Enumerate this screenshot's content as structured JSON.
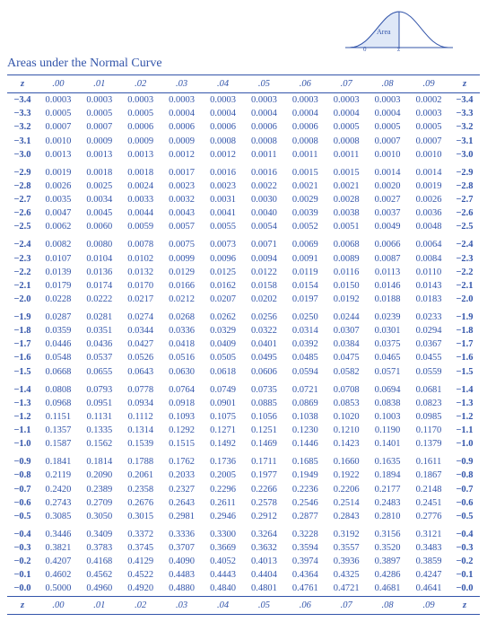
{
  "title": "Areas under the Normal Curve",
  "curve_label": "Area",
  "columns": [
    "z",
    ".00",
    ".01",
    ".02",
    ".03",
    ".04",
    ".05",
    ".06",
    ".07",
    ".08",
    ".09",
    "z"
  ],
  "footer": [
    "z",
    ".00",
    ".01",
    ".02",
    ".03",
    ".04",
    ".05",
    ".06",
    ".07",
    ".08",
    ".09",
    "z"
  ],
  "groups": [
    [
      [
        "−3.4",
        "0.0003",
        "0.0003",
        "0.0003",
        "0.0003",
        "0.0003",
        "0.0003",
        "0.0003",
        "0.0003",
        "0.0003",
        "0.0002",
        "−3.4"
      ],
      [
        "−3.3",
        "0.0005",
        "0.0005",
        "0.0005",
        "0.0004",
        "0.0004",
        "0.0004",
        "0.0004",
        "0.0004",
        "0.0004",
        "0.0003",
        "−3.3"
      ],
      [
        "−3.2",
        "0.0007",
        "0.0007",
        "0.0006",
        "0.0006",
        "0.0006",
        "0.0006",
        "0.0006",
        "0.0005",
        "0.0005",
        "0.0005",
        "−3.2"
      ],
      [
        "−3.1",
        "0.0010",
        "0.0009",
        "0.0009",
        "0.0009",
        "0.0008",
        "0.0008",
        "0.0008",
        "0.0008",
        "0.0007",
        "0.0007",
        "−3.1"
      ],
      [
        "−3.0",
        "0.0013",
        "0.0013",
        "0.0013",
        "0.0012",
        "0.0012",
        "0.0011",
        "0.0011",
        "0.0011",
        "0.0010",
        "0.0010",
        "−3.0"
      ]
    ],
    [
      [
        "−2.9",
        "0.0019",
        "0.0018",
        "0.0018",
        "0.0017",
        "0.0016",
        "0.0016",
        "0.0015",
        "0.0015",
        "0.0014",
        "0.0014",
        "−2.9"
      ],
      [
        "−2.8",
        "0.0026",
        "0.0025",
        "0.0024",
        "0.0023",
        "0.0023",
        "0.0022",
        "0.0021",
        "0.0021",
        "0.0020",
        "0.0019",
        "−2.8"
      ],
      [
        "−2.7",
        "0.0035",
        "0.0034",
        "0.0033",
        "0.0032",
        "0.0031",
        "0.0030",
        "0.0029",
        "0.0028",
        "0.0027",
        "0.0026",
        "−2.7"
      ],
      [
        "−2.6",
        "0.0047",
        "0.0045",
        "0.0044",
        "0.0043",
        "0.0041",
        "0.0040",
        "0.0039",
        "0.0038",
        "0.0037",
        "0.0036",
        "−2.6"
      ],
      [
        "−2.5",
        "0.0062",
        "0.0060",
        "0.0059",
        "0.0057",
        "0.0055",
        "0.0054",
        "0.0052",
        "0.0051",
        "0.0049",
        "0.0048",
        "−2.5"
      ]
    ],
    [
      [
        "−2.4",
        "0.0082",
        "0.0080",
        "0.0078",
        "0.0075",
        "0.0073",
        "0.0071",
        "0.0069",
        "0.0068",
        "0.0066",
        "0.0064",
        "−2.4"
      ],
      [
        "−2.3",
        "0.0107",
        "0.0104",
        "0.0102",
        "0.0099",
        "0.0096",
        "0.0094",
        "0.0091",
        "0.0089",
        "0.0087",
        "0.0084",
        "−2.3"
      ],
      [
        "−2.2",
        "0.0139",
        "0.0136",
        "0.0132",
        "0.0129",
        "0.0125",
        "0.0122",
        "0.0119",
        "0.0116",
        "0.0113",
        "0.0110",
        "−2.2"
      ],
      [
        "−2.1",
        "0.0179",
        "0.0174",
        "0.0170",
        "0.0166",
        "0.0162",
        "0.0158",
        "0.0154",
        "0.0150",
        "0.0146",
        "0.0143",
        "−2.1"
      ],
      [
        "−2.0",
        "0.0228",
        "0.0222",
        "0.0217",
        "0.0212",
        "0.0207",
        "0.0202",
        "0.0197",
        "0.0192",
        "0.0188",
        "0.0183",
        "−2.0"
      ]
    ],
    [
      [
        "−1.9",
        "0.0287",
        "0.0281",
        "0.0274",
        "0.0268",
        "0.0262",
        "0.0256",
        "0.0250",
        "0.0244",
        "0.0239",
        "0.0233",
        "−1.9"
      ],
      [
        "−1.8",
        "0.0359",
        "0.0351",
        "0.0344",
        "0.0336",
        "0.0329",
        "0.0322",
        "0.0314",
        "0.0307",
        "0.0301",
        "0.0294",
        "−1.8"
      ],
      [
        "−1.7",
        "0.0446",
        "0.0436",
        "0.0427",
        "0.0418",
        "0.0409",
        "0.0401",
        "0.0392",
        "0.0384",
        "0.0375",
        "0.0367",
        "−1.7"
      ],
      [
        "−1.6",
        "0.0548",
        "0.0537",
        "0.0526",
        "0.0516",
        "0.0505",
        "0.0495",
        "0.0485",
        "0.0475",
        "0.0465",
        "0.0455",
        "−1.6"
      ],
      [
        "−1.5",
        "0.0668",
        "0.0655",
        "0.0643",
        "0.0630",
        "0.0618",
        "0.0606",
        "0.0594",
        "0.0582",
        "0.0571",
        "0.0559",
        "−1.5"
      ]
    ],
    [
      [
        "−1.4",
        "0.0808",
        "0.0793",
        "0.0778",
        "0.0764",
        "0.0749",
        "0.0735",
        "0.0721",
        "0.0708",
        "0.0694",
        "0.0681",
        "−1.4"
      ],
      [
        "−1.3",
        "0.0968",
        "0.0951",
        "0.0934",
        "0.0918",
        "0.0901",
        "0.0885",
        "0.0869",
        "0.0853",
        "0.0838",
        "0.0823",
        "−1.3"
      ],
      [
        "−1.2",
        "0.1151",
        "0.1131",
        "0.1112",
        "0.1093",
        "0.1075",
        "0.1056",
        "0.1038",
        "0.1020",
        "0.1003",
        "0.0985",
        "−1.2"
      ],
      [
        "−1.1",
        "0.1357",
        "0.1335",
        "0.1314",
        "0.1292",
        "0.1271",
        "0.1251",
        "0.1230",
        "0.1210",
        "0.1190",
        "0.1170",
        "−1.1"
      ],
      [
        "−1.0",
        "0.1587",
        "0.1562",
        "0.1539",
        "0.1515",
        "0.1492",
        "0.1469",
        "0.1446",
        "0.1423",
        "0.1401",
        "0.1379",
        "−1.0"
      ]
    ],
    [
      [
        "−0.9",
        "0.1841",
        "0.1814",
        "0.1788",
        "0.1762",
        "0.1736",
        "0.1711",
        "0.1685",
        "0.1660",
        "0.1635",
        "0.1611",
        "−0.9"
      ],
      [
        "−0.8",
        "0.2119",
        "0.2090",
        "0.2061",
        "0.2033",
        "0.2005",
        "0.1977",
        "0.1949",
        "0.1922",
        "0.1894",
        "0.1867",
        "−0.8"
      ],
      [
        "−0.7",
        "0.2420",
        "0.2389",
        "0.2358",
        "0.2327",
        "0.2296",
        "0.2266",
        "0.2236",
        "0.2206",
        "0.2177",
        "0.2148",
        "−0.7"
      ],
      [
        "−0.6",
        "0.2743",
        "0.2709",
        "0.2676",
        "0.2643",
        "0.2611",
        "0.2578",
        "0.2546",
        "0.2514",
        "0.2483",
        "0.2451",
        "−0.6"
      ],
      [
        "−0.5",
        "0.3085",
        "0.3050",
        "0.3015",
        "0.2981",
        "0.2946",
        "0.2912",
        "0.2877",
        "0.2843",
        "0.2810",
        "0.2776",
        "−0.5"
      ]
    ],
    [
      [
        "−0.4",
        "0.3446",
        "0.3409",
        "0.3372",
        "0.3336",
        "0.3300",
        "0.3264",
        "0.3228",
        "0.3192",
        "0.3156",
        "0.3121",
        "−0.4"
      ],
      [
        "−0.3",
        "0.3821",
        "0.3783",
        "0.3745",
        "0.3707",
        "0.3669",
        "0.3632",
        "0.3594",
        "0.3557",
        "0.3520",
        "0.3483",
        "−0.3"
      ],
      [
        "−0.2",
        "0.4207",
        "0.4168",
        "0.4129",
        "0.4090",
        "0.4052",
        "0.4013",
        "0.3974",
        "0.3936",
        "0.3897",
        "0.3859",
        "−0.2"
      ],
      [
        "−0.1",
        "0.4602",
        "0.4562",
        "0.4522",
        "0.4483",
        "0.4443",
        "0.4404",
        "0.4364",
        "0.4325",
        "0.4286",
        "0.4247",
        "−0.1"
      ],
      [
        "−0.0",
        "0.5000",
        "0.4960",
        "0.4920",
        "0.4880",
        "0.4840",
        "0.4801",
        "0.4761",
        "0.4721",
        "0.4681",
        "0.4641",
        "−0.0"
      ]
    ]
  ],
  "colors": {
    "text": "#3355aa",
    "rule": "#3355aa",
    "curve_fill": "#dfe8f7",
    "curve_stroke": "#3355aa"
  }
}
